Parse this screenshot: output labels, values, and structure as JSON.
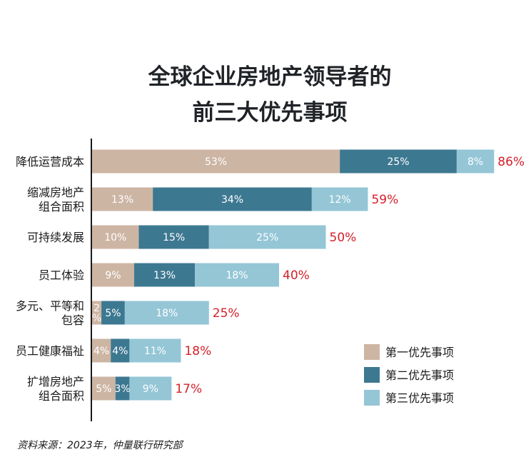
{
  "chart_data": {
    "type": "bar",
    "orientation": "horizontal",
    "stacked": true,
    "title_lines": [
      "全球企业房地产领导者的",
      "前三大优先事项"
    ],
    "categories": [
      [
        "降低运营成本"
      ],
      [
        "缩减房地产",
        "组合面积"
      ],
      [
        "可持续发展"
      ],
      [
        "员工体验"
      ],
      [
        "多元、平等和",
        "包容"
      ],
      [
        "员工健康福祉"
      ],
      [
        "扩增房地产",
        "组合面积"
      ]
    ],
    "series": [
      {
        "name": "第一优先事项",
        "color": "#cdb5a4",
        "values": [
          53,
          13,
          10,
          9,
          2,
          4,
          5
        ],
        "labels": [
          "53%",
          "13%",
          "10%",
          "9%",
          "2\n%",
          "4%",
          "5%"
        ]
      },
      {
        "name": "第二优先事项",
        "color": "#3d7891",
        "values": [
          25,
          34,
          15,
          13,
          5,
          4,
          3
        ],
        "labels": [
          "25%",
          "34%",
          "15%",
          "13%",
          "5%",
          "4%",
          "3%"
        ]
      },
      {
        "name": "第三优先事项",
        "color": "#94c6d6",
        "values": [
          8,
          12,
          25,
          18,
          18,
          11,
          9
        ],
        "labels": [
          "8%",
          "12%",
          "25%",
          "18%",
          "18%",
          "11%",
          "9%"
        ]
      }
    ],
    "totals": [
      "86%",
      "59%",
      "50%",
      "40%",
      "25%",
      "18%",
      "17%"
    ],
    "total_color": "#d4202a",
    "xlim": [
      0,
      100
    ],
    "grid": false,
    "legend_position": "bottom-right"
  },
  "source": "资料来源：2023年，仲量联行研究部"
}
